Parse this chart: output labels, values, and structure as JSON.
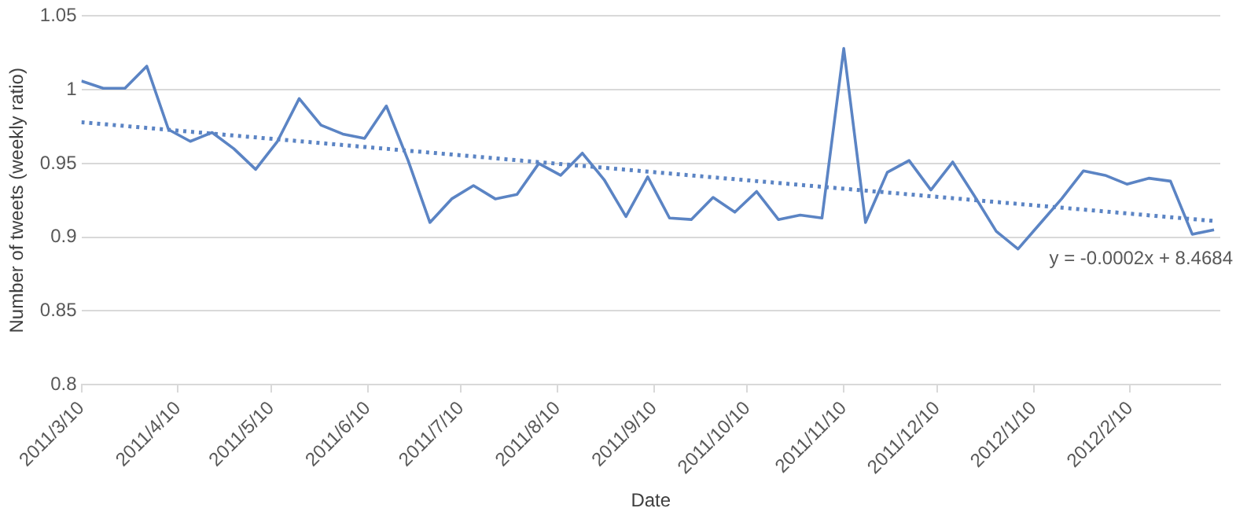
{
  "chart_data": {
    "type": "line",
    "xlabel": "Date",
    "ylabel": "Number of tweets (weekly ratio)",
    "x": [
      "2011-03-10",
      "2011-03-17",
      "2011-03-24",
      "2011-03-31",
      "2011-04-07",
      "2011-04-14",
      "2011-04-21",
      "2011-04-28",
      "2011-05-05",
      "2011-05-12",
      "2011-05-19",
      "2011-05-26",
      "2011-06-02",
      "2011-06-09",
      "2011-06-16",
      "2011-06-23",
      "2011-06-30",
      "2011-07-07",
      "2011-07-14",
      "2011-07-21",
      "2011-07-28",
      "2011-08-04",
      "2011-08-11",
      "2011-08-18",
      "2011-08-25",
      "2011-09-01",
      "2011-09-08",
      "2011-09-15",
      "2011-09-22",
      "2011-09-29",
      "2011-10-06",
      "2011-10-13",
      "2011-10-20",
      "2011-10-27",
      "2011-11-03",
      "2011-11-10",
      "2011-11-17",
      "2011-11-24",
      "2011-12-01",
      "2011-12-08",
      "2011-12-15",
      "2011-12-22",
      "2011-12-29",
      "2012-01-05",
      "2012-01-12",
      "2012-01-19",
      "2012-01-26",
      "2012-02-02",
      "2012-02-09",
      "2012-02-16",
      "2012-02-23",
      "2012-03-01",
      "2012-03-08"
    ],
    "series": [
      {
        "color": "#5b84c4",
        "values": [
          1.006,
          1.001,
          1.001,
          1.016,
          0.973,
          0.965,
          0.971,
          0.96,
          0.946,
          0.965,
          0.994,
          0.976,
          0.97,
          0.967,
          0.989,
          0.952,
          0.91,
          0.926,
          0.935,
          0.926,
          0.929,
          0.95,
          0.942,
          0.957,
          0.939,
          0.914,
          0.941,
          0.913,
          0.912,
          0.927,
          0.917,
          0.931,
          0.912,
          0.915,
          0.913,
          1.028,
          0.91,
          0.944,
          0.952,
          0.932,
          0.951,
          0.928,
          0.904,
          0.892,
          0.909,
          0.926,
          0.945,
          0.942,
          0.936,
          0.94,
          0.938,
          0.902,
          0.905
        ]
      },
      {
        "type": "line",
        "color": "#5b84c4",
        "line_style": "dotted",
        "x": [
          "2011-03-10",
          "2012-03-08"
        ],
        "values": [
          0.978,
          0.911
        ]
      }
    ],
    "annotations": [
      "y = -0.0002x + 8.4684"
    ],
    "xlim": [
      "2011-03-10",
      "2012-03-10"
    ],
    "xticks": [
      {
        "value": "2011-03-10",
        "label": "2011/3/10"
      },
      {
        "value": "2011-04-10",
        "label": "2011/4/10"
      },
      {
        "value": "2011-05-10",
        "label": "2011/5/10"
      },
      {
        "value": "2011-06-10",
        "label": "2011/6/10"
      },
      {
        "value": "2011-07-10",
        "label": "2011/7/10"
      },
      {
        "value": "2011-08-10",
        "label": "2011/8/10"
      },
      {
        "value": "2011-09-10",
        "label": "2011/9/10"
      },
      {
        "value": "2011-10-10",
        "label": "2011/10/10"
      },
      {
        "value": "2011-11-10",
        "label": "2011/11/10"
      },
      {
        "value": "2011-12-10",
        "label": "2011/12/10"
      },
      {
        "value": "2012-01-10",
        "label": "2012/1/10"
      },
      {
        "value": "2012-02-10",
        "label": "2012/2/10"
      }
    ],
    "ylim": [
      0.8,
      1.05
    ],
    "yticks": [
      0.8,
      0.85,
      0.9,
      0.95,
      1,
      1.05
    ],
    "grid": "y",
    "legend": false,
    "marker": "none",
    "line_style": "solid"
  }
}
